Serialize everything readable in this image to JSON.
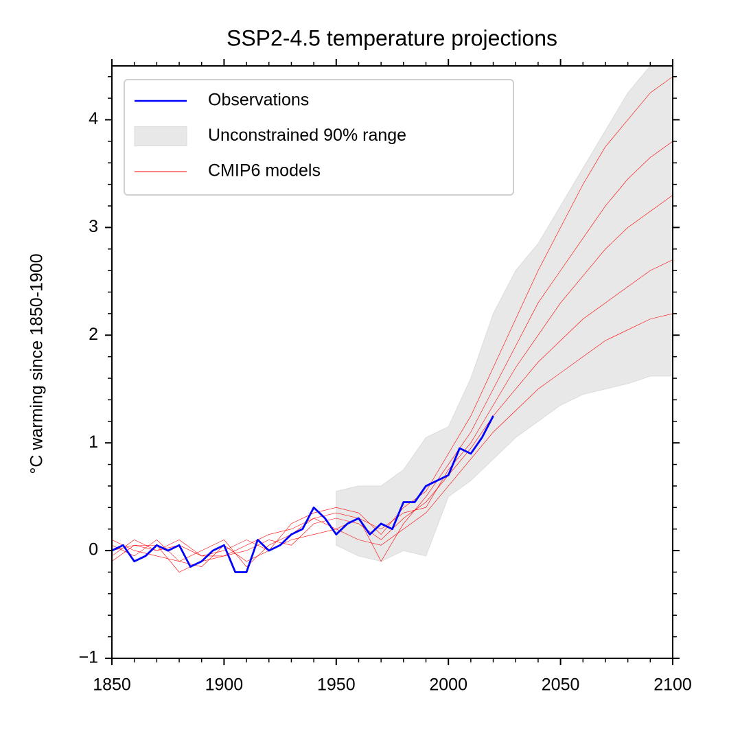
{
  "chart_data": {
    "type": "line",
    "title": "SSP2-4.5 temperature projections",
    "y_label": "°C warming since 1850-1900",
    "xlim": [
      1850,
      2100
    ],
    "ylim": [
      -1,
      4.5
    ],
    "xticks": [
      1850,
      1900,
      1950,
      2000,
      2050,
      2100
    ],
    "xminorticks": [
      1860,
      1870,
      1880,
      1890,
      1910,
      1920,
      1930,
      1940,
      1960,
      1970,
      1980,
      1990,
      2010,
      2020,
      2030,
      2040,
      2060,
      2070,
      2080,
      2090
    ],
    "yticks": [
      {
        "value": -1,
        "label": "−1"
      },
      0,
      1,
      2,
      3,
      4
    ],
    "yminorticks": [
      -0.8,
      -0.6,
      -0.4,
      -0.2,
      0.2,
      0.4,
      0.6,
      0.8,
      1.2,
      1.4,
      1.6,
      1.8,
      2.2,
      2.4,
      2.6,
      2.8,
      3.2,
      3.4,
      3.6,
      3.8,
      4.2,
      4.4
    ],
    "legend": "upper left",
    "series": [
      {
        "name": "Observations",
        "color": "#0000ff",
        "x": [
          1850,
          1855,
          1860,
          1865,
          1870,
          1875,
          1880,
          1885,
          1890,
          1895,
          1900,
          1905,
          1910,
          1915,
          1920,
          1925,
          1930,
          1935,
          1940,
          1945,
          1950,
          1955,
          1960,
          1965,
          1970,
          1975,
          1980,
          1985,
          1990,
          1995,
          2000,
          2005,
          2010,
          2015,
          2020
        ],
        "values": [
          0.0,
          0.05,
          -0.1,
          -0.05,
          0.05,
          0.0,
          0.05,
          -0.15,
          -0.1,
          0.0,
          0.05,
          -0.2,
          -0.2,
          0.1,
          0.0,
          0.05,
          0.15,
          0.2,
          0.4,
          0.3,
          0.15,
          0.25,
          0.3,
          0.15,
          0.25,
          0.2,
          0.45,
          0.45,
          0.6,
          0.65,
          0.7,
          0.95,
          0.9,
          1.05,
          1.25
        ]
      },
      {
        "name": "Unconstrained 90% range",
        "color": "#e8e8e8",
        "x": [
          1950,
          1960,
          1970,
          1980,
          1990,
          2000,
          2010,
          2020,
          2030,
          2040,
          2050,
          2060,
          2070,
          2080,
          2090,
          2100
        ],
        "lower": [
          0.05,
          -0.05,
          -0.1,
          0.0,
          -0.05,
          0.5,
          0.65,
          0.85,
          1.05,
          1.2,
          1.35,
          1.45,
          1.5,
          1.55,
          1.62,
          1.62
        ],
        "upper": [
          0.55,
          0.6,
          0.6,
          0.75,
          1.05,
          1.15,
          1.6,
          2.2,
          2.6,
          2.85,
          3.2,
          3.55,
          3.9,
          4.25,
          4.5,
          4.5
        ]
      },
      {
        "name": "CMIP6 models",
        "color": "#ff0000",
        "x": [
          1850,
          1860,
          1870,
          1880,
          1890,
          1900,
          1910,
          1920,
          1930,
          1940,
          1950,
          1960,
          1970,
          1980,
          1990,
          2000,
          2010,
          2020,
          2030,
          2040,
          2050,
          2060,
          2070,
          2080,
          2090,
          2100
        ],
        "members": [
          [
            0.05,
            -0.05,
            0.1,
            -0.1,
            -0.15,
            0.05,
            -0.1,
            0.0,
            0.1,
            0.15,
            0.2,
            0.1,
            0.05,
            0.2,
            0.35,
            0.6,
            0.85,
            1.1,
            1.3,
            1.5,
            1.65,
            1.8,
            1.95,
            2.05,
            2.15,
            2.2
          ],
          [
            -0.05,
            0.1,
            0.0,
            0.05,
            -0.05,
            -0.05,
            0.0,
            0.1,
            0.05,
            0.25,
            0.3,
            0.25,
            0.1,
            0.3,
            0.45,
            0.7,
            0.95,
            1.25,
            1.5,
            1.75,
            1.95,
            2.15,
            2.3,
            2.45,
            2.6,
            2.7
          ],
          [
            0.1,
            0.0,
            -0.05,
            -0.1,
            0.0,
            0.1,
            -0.15,
            0.05,
            0.15,
            0.3,
            0.2,
            0.3,
            0.2,
            0.35,
            0.4,
            0.75,
            1.0,
            1.35,
            1.7,
            2.0,
            2.3,
            2.55,
            2.8,
            3.0,
            3.15,
            3.3
          ],
          [
            0.0,
            0.05,
            0.05,
            -0.2,
            -0.1,
            -0.05,
            0.05,
            0.15,
            0.2,
            0.3,
            0.35,
            0.3,
            -0.1,
            0.25,
            0.5,
            0.8,
            1.1,
            1.5,
            1.9,
            2.3,
            2.6,
            2.9,
            3.2,
            3.45,
            3.65,
            3.8
          ],
          [
            -0.1,
            0.05,
            0.0,
            0.1,
            -0.05,
            0.0,
            0.1,
            0.0,
            0.25,
            0.35,
            0.4,
            0.35,
            0.15,
            0.4,
            0.55,
            0.9,
            1.25,
            1.7,
            2.15,
            2.6,
            3.0,
            3.4,
            3.75,
            4.0,
            4.25,
            4.4
          ]
        ]
      }
    ]
  }
}
